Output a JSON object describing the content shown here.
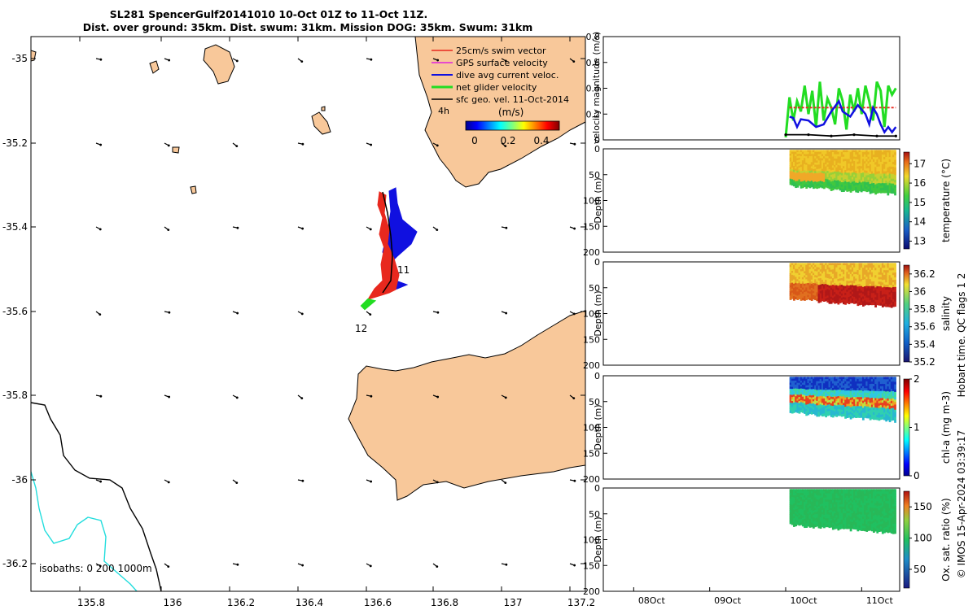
{
  "title": {
    "line1": "SL281 SpencerGulf20141010 10-Oct 01Z to 11-Oct 11Z.",
    "line2": "Dist. over ground: 35km. Dist. swum: 31km. Mission DOG: 35km. Swum: 31km"
  },
  "map": {
    "legend": [
      {
        "label": "25cm/s swim vector",
        "color": "#e8281e"
      },
      {
        "label": "GPS surface velocity",
        "color": "#e020e0"
      },
      {
        "label": "dive avg current veloc.",
        "color": "#1010e0"
      },
      {
        "label": "net glider velocity",
        "color": "#22dd22"
      },
      {
        "label": "sfc geo. vel. 11-Oct-2014",
        "color": "#000000"
      }
    ],
    "colorbar_title": "(m/s)",
    "colorbar_ticks": [
      "0",
      "0.2",
      "0.4"
    ],
    "interval_label": "4h",
    "track_labels": [
      "11",
      "12"
    ],
    "isobaths_label": "isobaths: 0   200  1000m",
    "x_ticks": [
      "135.8",
      "136",
      "136.2",
      "136.4",
      "136.6",
      "136.8",
      "137",
      "137.2"
    ],
    "y_ticks": [
      "-35",
      "-35.2",
      "-35.4",
      "-35.6",
      "-35.8",
      "-36",
      "-36.2"
    ],
    "colors": {
      "land": "#f8c89a",
      "isobath_0": "#000000",
      "isobath_200": "#22dddd",
      "swim": "#e8281e",
      "current": "#1010e0"
    }
  },
  "chart_data": [
    {
      "type": "line",
      "title": "",
      "ylabel": "velocity magnitude (m/s)",
      "ylim": [
        0,
        0.8
      ],
      "y_ticks": [
        "0",
        "0.2",
        "0.4",
        "0.6",
        "0.8"
      ],
      "series": [
        {
          "name": "net glider velocity",
          "color": "#22dd22",
          "x": [
            10.0,
            10.05,
            10.1,
            10.15,
            10.2,
            10.25,
            10.3,
            10.35,
            10.4,
            10.45,
            10.5,
            10.55,
            10.6,
            10.65,
            10.7,
            10.75,
            10.8,
            10.85,
            10.9,
            10.95,
            11.0,
            11.05,
            11.1,
            11.15,
            11.2,
            11.25,
            11.3,
            11.35,
            11.4,
            11.45
          ],
          "y": [
            0.02,
            0.33,
            0.15,
            0.3,
            0.22,
            0.42,
            0.2,
            0.38,
            0.1,
            0.45,
            0.15,
            0.32,
            0.25,
            0.12,
            0.4,
            0.3,
            0.08,
            0.35,
            0.22,
            0.4,
            0.2,
            0.42,
            0.3,
            0.15,
            0.45,
            0.38,
            0.1,
            0.42,
            0.35,
            0.4
          ]
        },
        {
          "name": "25cm/s swim vector",
          "color": "#e8281e",
          "x": [
            10.05,
            11.45
          ],
          "y": [
            0.25,
            0.25
          ]
        },
        {
          "name": "dive avg current veloc.",
          "color": "#1010e0",
          "x": [
            10.05,
            10.1,
            10.15,
            10.2,
            10.3,
            10.4,
            10.5,
            10.6,
            10.7,
            10.75,
            10.85,
            10.95,
            11.05,
            11.1,
            11.15,
            11.2,
            11.25,
            11.3,
            11.35,
            11.4,
            11.45
          ],
          "y": [
            0.18,
            0.17,
            0.1,
            0.16,
            0.15,
            0.1,
            0.12,
            0.22,
            0.3,
            0.22,
            0.18,
            0.27,
            0.2,
            0.12,
            0.25,
            0.2,
            0.12,
            0.06,
            0.1,
            0.06,
            0.1
          ]
        },
        {
          "name": "sfc geo. vel. 11-Oct-2014",
          "color": "#000000",
          "x": [
            10.0,
            10.3,
            10.6,
            10.9,
            11.2,
            11.45
          ],
          "y": [
            0.04,
            0.04,
            0.03,
            0.04,
            0.03,
            0.03
          ]
        }
      ]
    },
    {
      "type": "heatmap",
      "ylabel": "Depth (m)",
      "colorbar_label": "temperature (°C)",
      "ylim": [
        200,
        0
      ],
      "y_ticks": [
        "0",
        "50",
        "100",
        "150",
        "200"
      ],
      "colorbar_ticks": [
        "13",
        "14",
        "15",
        "16",
        "17"
      ],
      "color_range": [
        12.6,
        17.6
      ]
    },
    {
      "type": "heatmap",
      "ylabel": "Depth (m)",
      "colorbar_label": "salinity",
      "ylim": [
        200,
        0
      ],
      "y_ticks": [
        "0",
        "50",
        "100",
        "150",
        "200"
      ],
      "colorbar_ticks": [
        "35.2",
        "35.4",
        "35.6",
        "35.8",
        "36",
        "36.2"
      ],
      "color_range": [
        35.2,
        36.3
      ]
    },
    {
      "type": "heatmap",
      "ylabel": "Depth (m)",
      "colorbar_label": "chl-a (mg m-3)",
      "ylim": [
        200,
        0
      ],
      "y_ticks": [
        "0",
        "50",
        "100",
        "150",
        "200"
      ],
      "colorbar_ticks": [
        "0",
        "1",
        "2"
      ],
      "color_range": [
        0,
        2
      ]
    },
    {
      "type": "heatmap",
      "ylabel": "Depth (m)",
      "colorbar_label": "Ox. sat. ratio (%)",
      "ylim": [
        200,
        0
      ],
      "y_ticks": [
        "0",
        "50",
        "100",
        "150",
        "200"
      ],
      "colorbar_ticks": [
        "50",
        "100",
        "150"
      ],
      "color_range": [
        20,
        175
      ],
      "x_ticks": [
        "08Oct",
        "09Oct",
        "10Oct",
        "11Oct"
      ]
    }
  ],
  "footer": {
    "qc_text": "Hobart time. QC flags 1  2",
    "credit": "© IMOS 15-Apr-2024 03:39:17"
  }
}
